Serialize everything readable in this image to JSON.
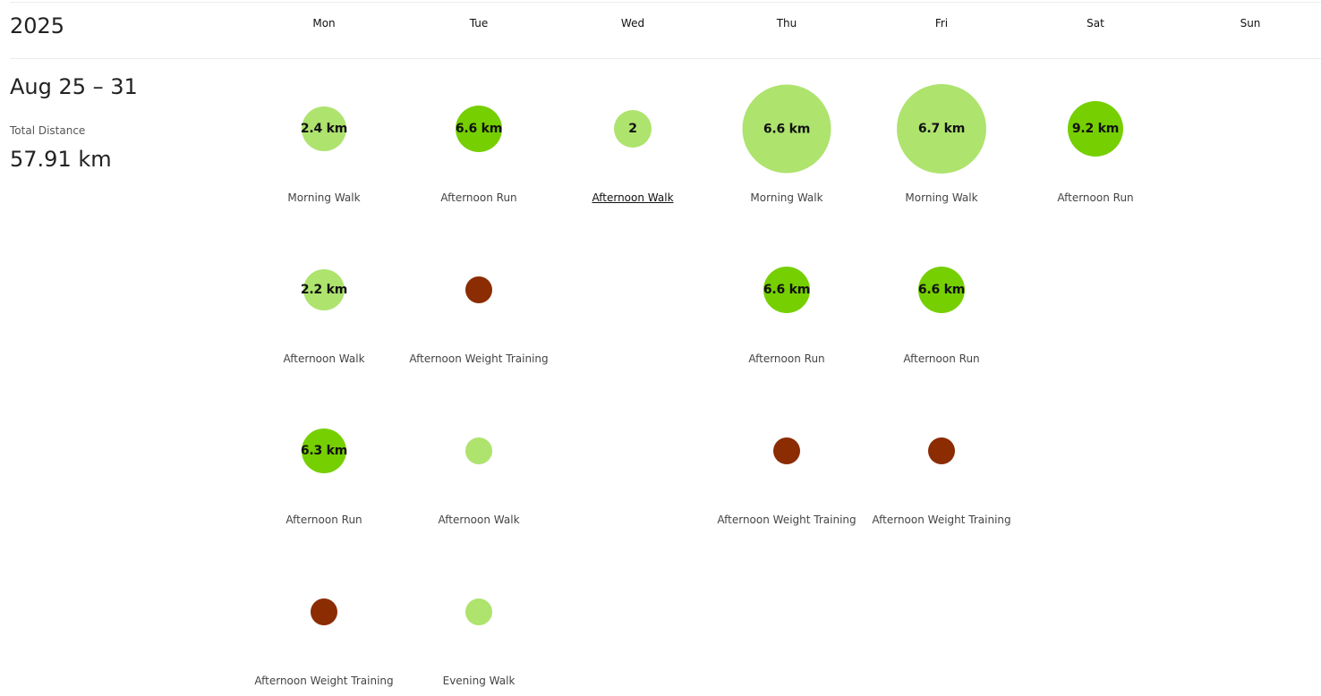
{
  "year": "2025",
  "days": [
    "Mon",
    "Tue",
    "Wed",
    "Thu",
    "Fri",
    "Sat",
    "Sun"
  ],
  "week": {
    "range": "Aug 25 – 31",
    "total_label": "Total Distance",
    "total_value": "57.91 km"
  },
  "colors": {
    "walk": "#aee36e",
    "run": "#76cf00",
    "weight": "#8b2c02"
  },
  "activities": [
    {
      "day": 0,
      "slot": 0,
      "label": "2.4 km",
      "name": "Morning Walk",
      "type": "walk",
      "size": 50
    },
    {
      "day": 1,
      "slot": 0,
      "label": "6.6 km",
      "name": "Afternoon Run",
      "type": "run",
      "size": 52
    },
    {
      "day": 2,
      "slot": 0,
      "label": "2",
      "name": "Afternoon Walk",
      "type": "walk",
      "size": 42,
      "underlined": true
    },
    {
      "day": 3,
      "slot": 0,
      "label": "6.6 km",
      "name": "Morning Walk",
      "type": "walk",
      "size": 99
    },
    {
      "day": 4,
      "slot": 0,
      "label": "6.7 km",
      "name": "Morning Walk",
      "type": "walk",
      "size": 100
    },
    {
      "day": 5,
      "slot": 0,
      "label": "9.2 km",
      "name": "Afternoon Run",
      "type": "run",
      "size": 62
    },
    {
      "day": 0,
      "slot": 1,
      "label": "2.2 km",
      "name": "Afternoon Walk",
      "type": "walk",
      "size": 46
    },
    {
      "day": 1,
      "slot": 1,
      "label": "",
      "name": "Afternoon Weight Training",
      "type": "weight",
      "size": 30
    },
    {
      "day": 3,
      "slot": 1,
      "label": "6.6 km",
      "name": "Afternoon Run",
      "type": "run",
      "size": 52
    },
    {
      "day": 4,
      "slot": 1,
      "label": "6.6 km",
      "name": "Afternoon Run",
      "type": "run",
      "size": 52
    },
    {
      "day": 0,
      "slot": 2,
      "label": "6.3 km",
      "name": "Afternoon Run",
      "type": "run",
      "size": 50
    },
    {
      "day": 1,
      "slot": 2,
      "label": "",
      "name": "Afternoon Walk",
      "type": "walk",
      "size": 30
    },
    {
      "day": 3,
      "slot": 2,
      "label": "",
      "name": "Afternoon Weight Training",
      "type": "weight",
      "size": 30
    },
    {
      "day": 4,
      "slot": 2,
      "label": "",
      "name": "Afternoon Weight Training",
      "type": "weight",
      "size": 30
    },
    {
      "day": 0,
      "slot": 3,
      "label": "",
      "name": "Afternoon Weight Training",
      "type": "weight",
      "size": 30
    },
    {
      "day": 1,
      "slot": 3,
      "label": "",
      "name": "Evening Walk",
      "type": "walk",
      "size": 30
    }
  ]
}
